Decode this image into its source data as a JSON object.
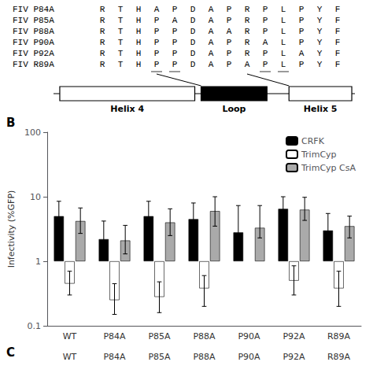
{
  "chart_data": {
    "type": "bar",
    "categories": [
      "WT",
      "P84A",
      "P85A",
      "P88A",
      "P90A",
      "P92A",
      "R89A"
    ],
    "series": [
      {
        "name": "CRFK",
        "color": "black",
        "values": [
          5.0,
          2.2,
          5.0,
          4.5,
          2.8,
          6.5,
          3.0
        ],
        "err_lo": [
          2.0,
          0.8,
          2.0,
          1.8,
          0.8,
          2.0,
          1.0
        ],
        "err_hi": [
          3.5,
          2.0,
          3.5,
          3.5,
          4.5,
          3.5,
          2.5
        ]
      },
      {
        "name": "TrimCyp",
        "color": "white",
        "values": [
          0.45,
          0.25,
          0.28,
          0.38,
          null,
          0.5,
          0.38
        ],
        "err_lo": [
          0.15,
          0.1,
          0.12,
          0.18,
          null,
          0.2,
          0.18
        ],
        "err_hi": [
          0.25,
          0.2,
          0.2,
          0.22,
          null,
          0.35,
          0.32
        ]
      },
      {
        "name": "TrimCyp CsA",
        "color": "#aaaaaa",
        "values": [
          4.2,
          2.1,
          4.0,
          6.0,
          3.3,
          6.3,
          3.5
        ],
        "err_lo": [
          1.5,
          0.8,
          1.5,
          2.5,
          1.0,
          2.0,
          1.2
        ],
        "err_hi": [
          2.5,
          1.5,
          2.5,
          4.0,
          4.0,
          3.5,
          1.5
        ]
      }
    ],
    "ylabel": "Infectivity (%GFP)",
    "log": "y",
    "ylim": [
      0.1,
      100
    ],
    "yticks": [
      0.1,
      1,
      10,
      100
    ],
    "grid": false,
    "legend": "upper right",
    "sequence_alignment": [
      {
        "label": "FIV P84A",
        "sequence": [
          "R",
          "T",
          "H",
          "A",
          "P",
          "D",
          "A",
          "P",
          "R",
          "P",
          "L",
          "P",
          "Y",
          "F"
        ]
      },
      {
        "label": "FIV P85A",
        "sequence": [
          "R",
          "T",
          "H",
          "P",
          "A",
          "D",
          "A",
          "P",
          "R",
          "P",
          "L",
          "P",
          "Y",
          "F"
        ]
      },
      {
        "label": "FIV P88A",
        "sequence": [
          "R",
          "T",
          "H",
          "P",
          "P",
          "D",
          "A",
          "A",
          "R",
          "P",
          "L",
          "P",
          "Y",
          "F"
        ]
      },
      {
        "label": "FIV P90A",
        "sequence": [
          "R",
          "T",
          "H",
          "P",
          "P",
          "D",
          "A",
          "P",
          "R",
          "A",
          "L",
          "P",
          "Y",
          "F"
        ]
      },
      {
        "label": "FIV P92A",
        "sequence": [
          "R",
          "T",
          "H",
          "P",
          "P",
          "D",
          "A",
          "P",
          "R",
          "P",
          "L",
          "A",
          "Y",
          "F"
        ]
      },
      {
        "label": "FIV R89A",
        "sequence": [
          "R",
          "T",
          "H",
          "P",
          "P",
          "D",
          "A",
          "P",
          "A",
          "P",
          "L",
          "P",
          "Y",
          "F"
        ]
      }
    ],
    "diagram_labels": [
      "Helix 4",
      "Loop",
      "Helix 5"
    ],
    "panel_labels": [
      "B",
      "C"
    ],
    "bottom_labels": [
      "WT",
      "P84A",
      "P85A",
      "P88A",
      "P90A",
      "P92A",
      "R89A"
    ]
  }
}
